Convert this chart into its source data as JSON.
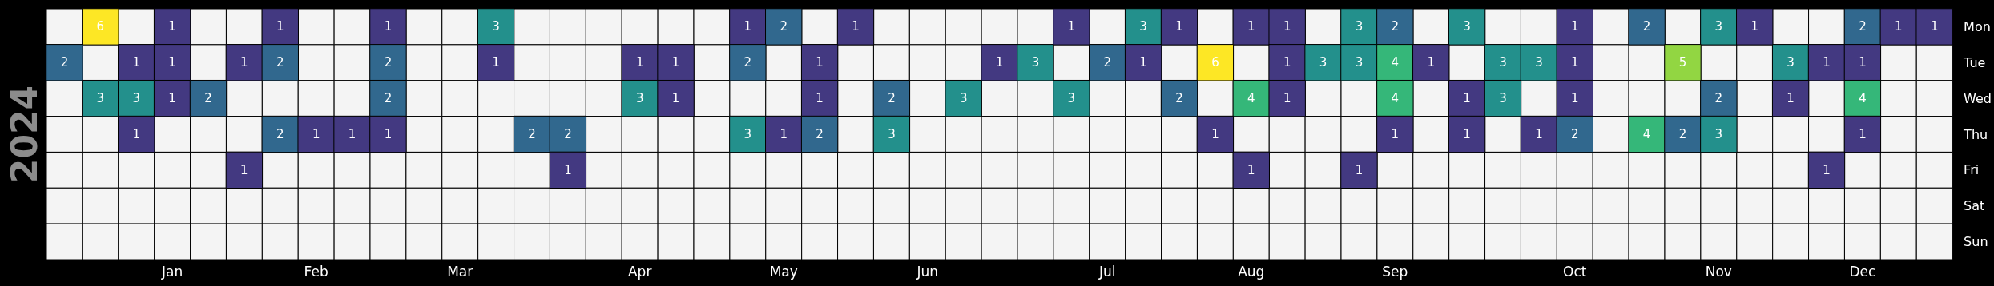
{
  "chart_data": {
    "type": "heatmap",
    "ylabel": "2024",
    "categories": [
      null,
      null,
      null,
      "Jan",
      null,
      null,
      null,
      "Feb",
      null,
      null,
      null,
      "Mar",
      null,
      null,
      null,
      null,
      "Apr",
      null,
      null,
      null,
      "May",
      null,
      null,
      null,
      "Jun",
      null,
      null,
      null,
      null,
      "Jul",
      null,
      null,
      null,
      "Aug",
      null,
      null,
      null,
      "Sep",
      null,
      null,
      null,
      null,
      "Oct",
      null,
      null,
      null,
      "Nov",
      null,
      null,
      null,
      "Dec",
      null,
      null
    ],
    "y_categories": [
      "Mon",
      "Tue",
      "Wed",
      "Thu",
      "Fri",
      "Sat",
      "Sun"
    ],
    "cells": [
      [
        null,
        6,
        null,
        1,
        null,
        null,
        1,
        null,
        null,
        1,
        null,
        null,
        3,
        null,
        null,
        null,
        null,
        null,
        null,
        1,
        2,
        null,
        1,
        null,
        null,
        null,
        null,
        null,
        1,
        null,
        3,
        1,
        null,
        1,
        1,
        null,
        3,
        2,
        null,
        3,
        null,
        null,
        1,
        null,
        2,
        null,
        3,
        1,
        null,
        null,
        2,
        1,
        1
      ],
      [
        2,
        null,
        1,
        1,
        null,
        1,
        2,
        null,
        null,
        2,
        null,
        null,
        1,
        null,
        null,
        null,
        1,
        1,
        null,
        2,
        null,
        1,
        null,
        null,
        null,
        null,
        1,
        3,
        null,
        2,
        1,
        null,
        6,
        null,
        1,
        3,
        3,
        4,
        1,
        null,
        3,
        3,
        1,
        null,
        null,
        5,
        null,
        null,
        3,
        1,
        1,
        null,
        null
      ],
      [
        null,
        3,
        3,
        1,
        2,
        null,
        null,
        null,
        null,
        2,
        null,
        null,
        null,
        null,
        null,
        null,
        3,
        1,
        null,
        null,
        null,
        1,
        null,
        2,
        null,
        3,
        null,
        null,
        3,
        null,
        null,
        2,
        null,
        4,
        1,
        null,
        null,
        4,
        null,
        1,
        3,
        null,
        1,
        null,
        null,
        null,
        2,
        null,
        1,
        null,
        4,
        null,
        null
      ],
      [
        null,
        null,
        1,
        null,
        null,
        null,
        2,
        1,
        1,
        1,
        null,
        null,
        null,
        2,
        2,
        null,
        null,
        null,
        null,
        3,
        1,
        2,
        null,
        3,
        null,
        null,
        null,
        null,
        null,
        null,
        null,
        null,
        1,
        null,
        null,
        null,
        null,
        1,
        null,
        1,
        null,
        1,
        2,
        null,
        4,
        2,
        3,
        null,
        null,
        null,
        1,
        null,
        null
      ],
      [
        null,
        null,
        null,
        null,
        null,
        1,
        null,
        null,
        null,
        null,
        null,
        null,
        null,
        null,
        1,
        null,
        null,
        null,
        null,
        null,
        null,
        null,
        null,
        null,
        null,
        null,
        null,
        null,
        null,
        null,
        null,
        null,
        null,
        1,
        null,
        null,
        1,
        null,
        null,
        null,
        null,
        null,
        null,
        null,
        null,
        null,
        null,
        null,
        null,
        1,
        null,
        null,
        null
      ],
      [
        null,
        null,
        null,
        null,
        null,
        null,
        null,
        null,
        null,
        null,
        null,
        null,
        null,
        null,
        null,
        null,
        null,
        null,
        null,
        null,
        null,
        null,
        null,
        null,
        null,
        null,
        null,
        null,
        null,
        null,
        null,
        null,
        null,
        null,
        null,
        null,
        null,
        null,
        null,
        null,
        null,
        null,
        null,
        null,
        null,
        null,
        null,
        null,
        null,
        null,
        null,
        null,
        null
      ],
      [
        null,
        null,
        null,
        null,
        null,
        null,
        null,
        null,
        null,
        null,
        null,
        null,
        null,
        null,
        null,
        null,
        null,
        null,
        null,
        null,
        null,
        null,
        null,
        null,
        null,
        null,
        null,
        null,
        null,
        null,
        null,
        null,
        null,
        null,
        null,
        null,
        null,
        null,
        null,
        null,
        null,
        null,
        null,
        null,
        null,
        null,
        null,
        null,
        null,
        null,
        null,
        null,
        null
      ]
    ],
    "data_labels": true
  }
}
